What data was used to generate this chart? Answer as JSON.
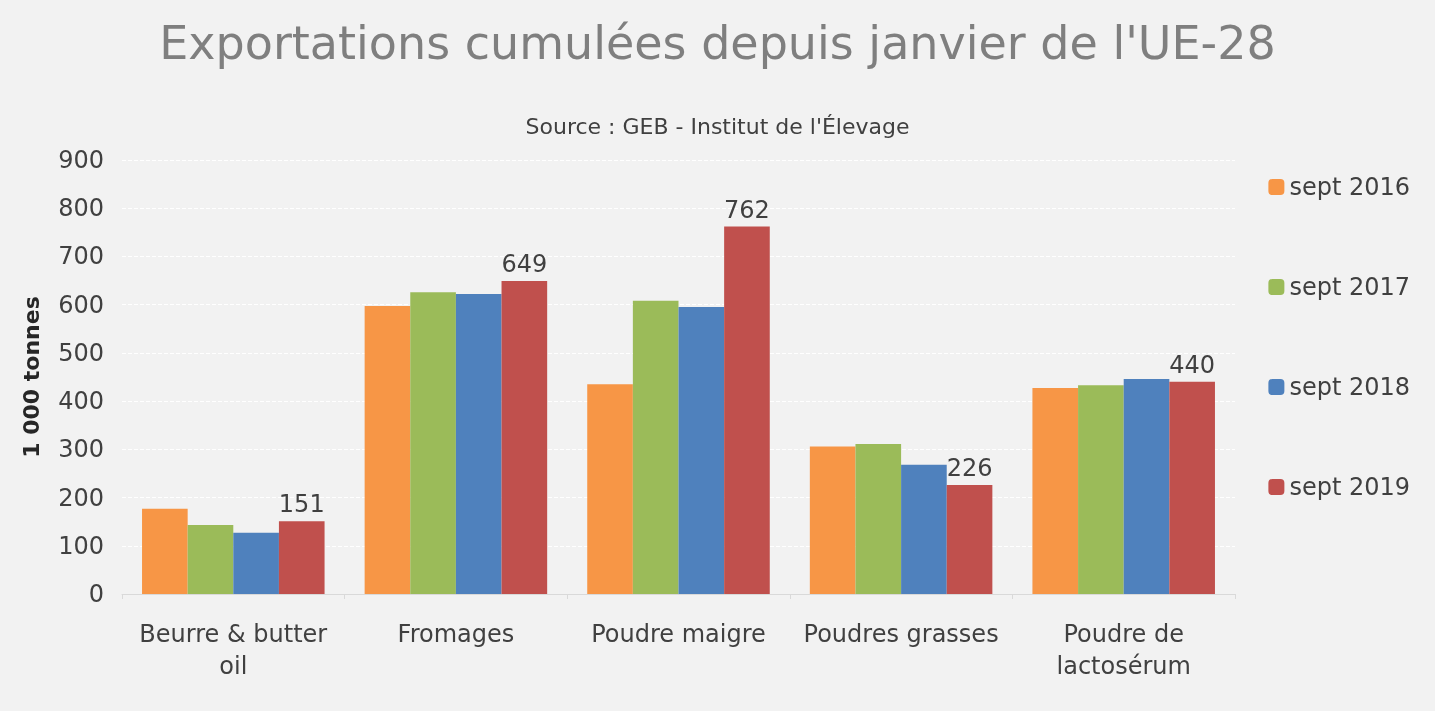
{
  "chart_data": {
    "type": "bar",
    "title": "Exportations cumulées depuis janvier de l'UE-28",
    "subtitle": "Source : GEB - Institut de l'Élevage",
    "ylabel": "1 000 tonnes",
    "categories": [
      "Beurre & butter\noil",
      "Fromages",
      "Poudre maigre",
      "Poudres grasses",
      "Poudre de\nlactosérum"
    ],
    "series": [
      {
        "name": "sept 2016",
        "color": "#f79646",
        "values": [
          177,
          597,
          435,
          306,
          427
        ]
      },
      {
        "name": "sept 2017",
        "color": "#9bbb59",
        "values": [
          143,
          626,
          608,
          311,
          433
        ]
      },
      {
        "name": "sept 2018",
        "color": "#4f81bd",
        "values": [
          127,
          622,
          595,
          268,
          446
        ]
      },
      {
        "name": "sept 2019",
        "color": "#c0504d",
        "values": [
          151,
          649,
          762,
          226,
          440
        ],
        "value_labels": [
          "151",
          "649",
          "762",
          "226",
          "440"
        ]
      }
    ],
    "ylim": [
      0,
      900
    ],
    "yticks": [
      0,
      100,
      200,
      300,
      400,
      500,
      600,
      700,
      800,
      900
    ],
    "grid": "y",
    "legend": "right"
  }
}
